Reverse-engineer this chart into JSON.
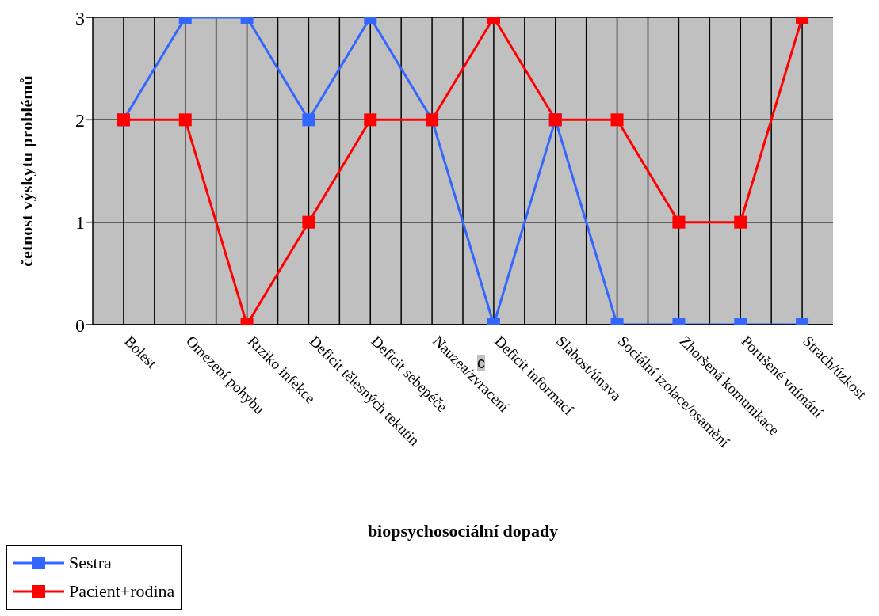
{
  "chart_data": {
    "type": "line",
    "xlabel": "biopsychosociální dopady",
    "ylabel": "četnost výskytu problémů",
    "categories": [
      "Bolest",
      "Omezení pohybu",
      "Riziko infekce",
      "Deficit tělesných tekutin",
      "Deficit sebepéče",
      "Nauzea/zvracení",
      "Deficit informací",
      "Slabost/únava",
      "Sociální izolace/osamění",
      "Zhoršená komunikace",
      "Porušené vnímání",
      "Strach/úzkost"
    ],
    "series": [
      {
        "name": "Sestra",
        "color": "#3366ff",
        "values": [
          2,
          3,
          3,
          2,
          3,
          2,
          0,
          2,
          0,
          0,
          0,
          0
        ]
      },
      {
        "name": "Pacient+rodina",
        "color": "#ff0000",
        "values": [
          2,
          2,
          0,
          1,
          2,
          2,
          3,
          2,
          2,
          1,
          1,
          3
        ]
      }
    ],
    "ylim": [
      0,
      3
    ],
    "yticks": [
      0,
      1,
      2,
      3
    ],
    "grid": true,
    "legend": "bottom left",
    "marker": "square",
    "line_style": "solid",
    "annotations": [
      "c"
    ]
  }
}
